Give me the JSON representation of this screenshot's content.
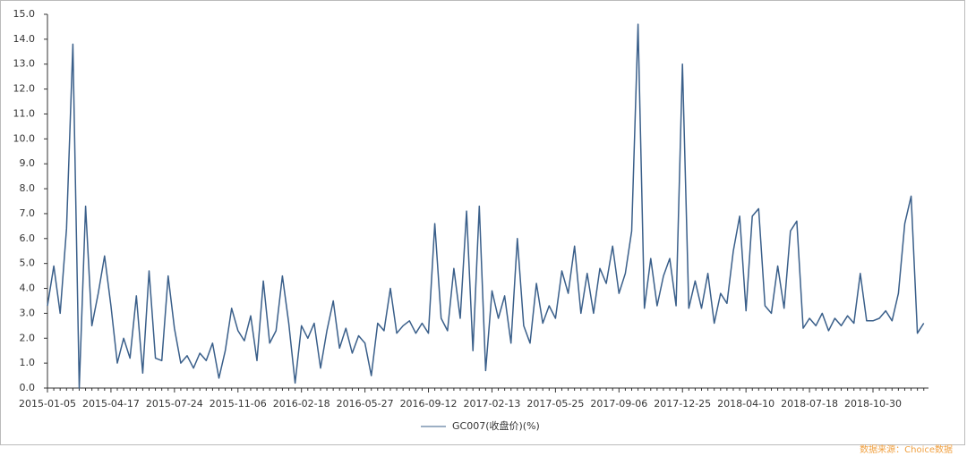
{
  "chart_data": {
    "type": "line",
    "categories": [
      "2015-01-05",
      null,
      null,
      null,
      null,
      null,
      null,
      null,
      null,
      null,
      "2015-04-17",
      null,
      null,
      null,
      null,
      null,
      null,
      null,
      null,
      null,
      "2015-07-24",
      null,
      null,
      null,
      null,
      null,
      null,
      null,
      null,
      null,
      "2015-11-06",
      null,
      null,
      null,
      null,
      null,
      null,
      null,
      null,
      null,
      "2016-02-18",
      null,
      null,
      null,
      null,
      null,
      null,
      null,
      null,
      null,
      "2016-05-27",
      null,
      null,
      null,
      null,
      null,
      null,
      null,
      null,
      null,
      "2016-09-12",
      null,
      null,
      null,
      null,
      null,
      null,
      null,
      null,
      null,
      "2017-02-13",
      null,
      null,
      null,
      null,
      null,
      null,
      null,
      null,
      null,
      "2017-05-25",
      null,
      null,
      null,
      null,
      null,
      null,
      null,
      null,
      null,
      "2017-09-06",
      null,
      null,
      null,
      null,
      null,
      null,
      null,
      null,
      null,
      "2017-12-25",
      null,
      null,
      null,
      null,
      null,
      null,
      null,
      null,
      null,
      "2018-04-10",
      null,
      null,
      null,
      null,
      null,
      null,
      null,
      null,
      null,
      "2018-07-18",
      null,
      null,
      null,
      null,
      null,
      null,
      null,
      null,
      null,
      "2018-10-30",
      null,
      null,
      null,
      null,
      null,
      null,
      null,
      null
    ],
    "series": [
      {
        "name": "GC007(收盘价)(%)",
        "color": "#3a5f8a",
        "values": [
          3.3,
          4.9,
          3.0,
          6.4,
          13.8,
          0.0,
          7.3,
          2.5,
          3.8,
          5.3,
          3.3,
          1.0,
          2.0,
          1.2,
          3.7,
          0.6,
          4.7,
          1.2,
          1.1,
          4.5,
          2.4,
          1.0,
          1.3,
          0.8,
          1.4,
          1.1,
          1.8,
          0.4,
          1.5,
          3.2,
          2.3,
          1.9,
          2.9,
          1.1,
          4.3,
          1.8,
          2.3,
          4.5,
          2.6,
          0.2,
          2.5,
          2.0,
          2.6,
          0.8,
          2.3,
          3.5,
          1.6,
          2.4,
          1.4,
          2.1,
          1.8,
          0.5,
          2.6,
          2.3,
          4.0,
          2.2,
          2.5,
          2.7,
          2.2,
          2.6,
          2.2,
          6.6,
          2.8,
          2.3,
          4.8,
          2.8,
          7.1,
          1.5,
          7.3,
          0.7,
          3.9,
          2.8,
          3.7,
          1.8,
          6.0,
          2.5,
          1.8,
          4.2,
          2.6,
          3.3,
          2.8,
          4.7,
          3.8,
          5.7,
          3.0,
          4.6,
          3.0,
          4.8,
          4.2,
          5.7,
          3.8,
          4.6,
          6.3,
          14.6,
          3.2,
          5.2,
          3.3,
          4.5,
          5.2,
          3.3,
          13.0,
          3.2,
          4.3,
          3.2,
          4.6,
          2.6,
          3.8,
          3.4,
          5.5,
          6.9,
          3.1,
          6.9,
          7.2,
          3.3,
          3.0,
          4.9,
          3.2,
          6.3,
          6.7,
          2.4,
          2.8,
          2.5,
          3.0,
          2.3,
          2.8,
          2.5,
          2.9,
          2.6,
          4.6,
          2.7,
          2.7,
          2.8,
          3.1,
          2.7,
          3.8,
          6.6,
          7.7,
          2.2,
          2.6
        ]
      }
    ],
    "ylim": [
      0,
      15
    ],
    "yticks": [
      {
        "value": 0,
        "label": "0.0"
      },
      {
        "value": 1,
        "label": "1.0"
      },
      {
        "value": 2,
        "label": "2.0"
      },
      {
        "value": 3,
        "label": "3.0"
      },
      {
        "value": 4,
        "label": "4.0"
      },
      {
        "value": 5,
        "label": "5.0"
      },
      {
        "value": 6,
        "label": "6.0"
      },
      {
        "value": 7,
        "label": "7.0"
      },
      {
        "value": 8,
        "label": "8.0"
      },
      {
        "value": 9,
        "label": "9.0"
      },
      {
        "value": 10,
        "label": "10.0"
      },
      {
        "value": 11,
        "label": "11.0"
      },
      {
        "value": 12,
        "label": "12.0"
      },
      {
        "value": 13,
        "label": "13.0"
      },
      {
        "value": 14,
        "label": "14.0"
      },
      {
        "value": 15,
        "label": "15.0"
      }
    ],
    "source": "数据来源：Choice数据"
  }
}
